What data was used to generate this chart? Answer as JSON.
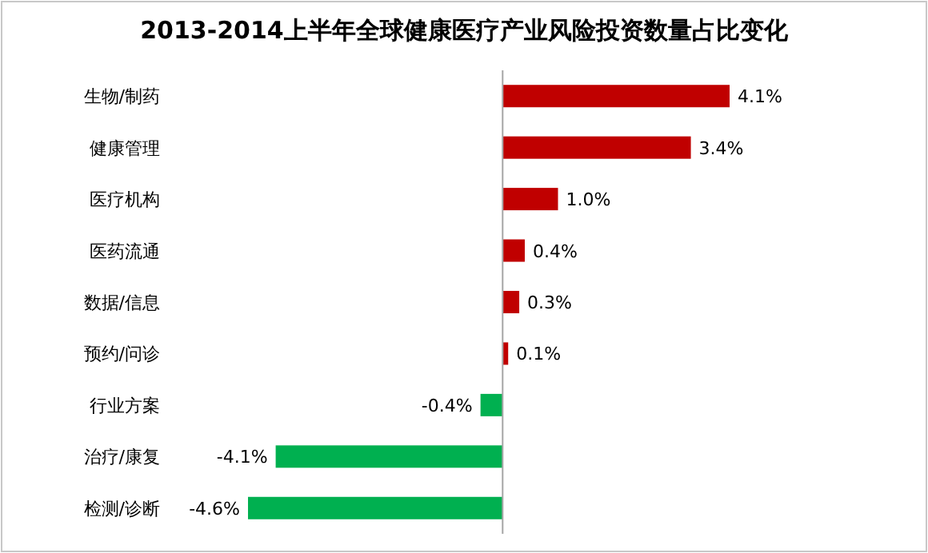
{
  "chart_data": {
    "type": "bar",
    "orientation": "horizontal",
    "title": "2013-2014上半年全球健康医疗产业风险投资数量占比变化",
    "categories": [
      "生物/制药",
      "健康管理",
      "医疗机构",
      "医药流通",
      "数据/信息",
      "预约/问诊",
      "行业方案",
      "治疗/康复",
      "检测/诊断"
    ],
    "values": [
      4.1,
      3.4,
      1.0,
      0.4,
      0.3,
      0.1,
      -0.4,
      -4.1,
      -4.6
    ],
    "value_labels": [
      "4.1%",
      "3.4%",
      "1.0%",
      "0.4%",
      "0.3%",
      "0.1%",
      "-0.4%",
      "-4.1%",
      "-4.6%"
    ],
    "colors": [
      "#c00000",
      "#c00000",
      "#c00000",
      "#c00000",
      "#c00000",
      "#c00000",
      "#00b050",
      "#00b050",
      "#00b050"
    ]
  }
}
